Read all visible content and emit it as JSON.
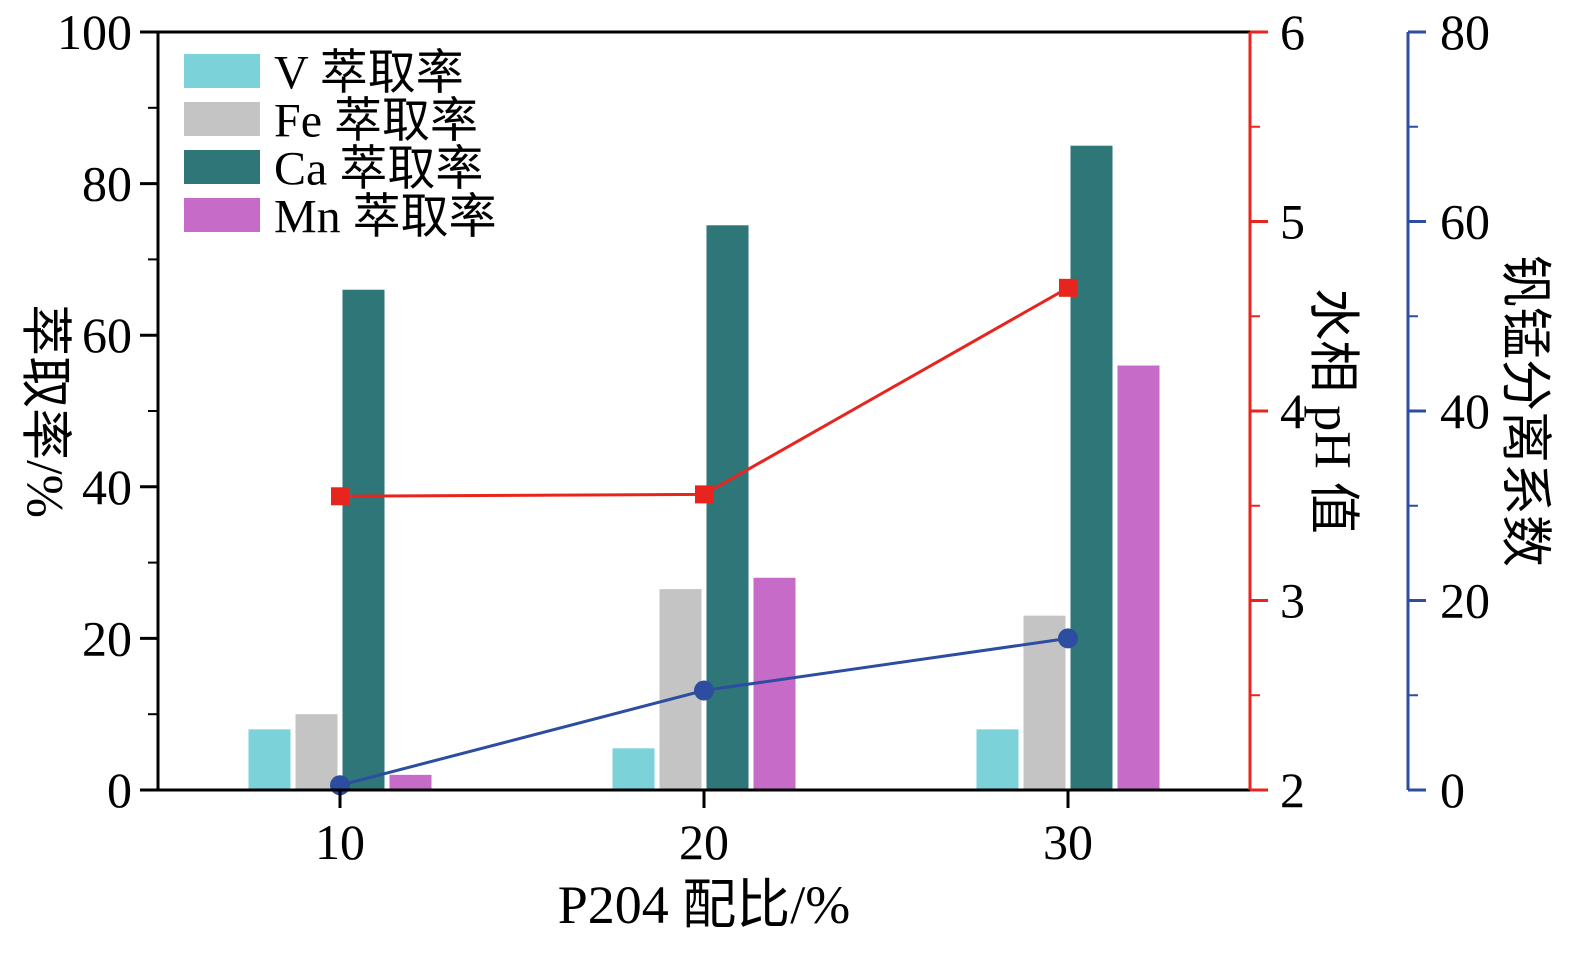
{
  "figure": {
    "description": "Combined bar and line chart: extraction rates of V, Fe, Ca, Mn; aqueous-phase pH; and V/Mn separation coefficient versus P204 ratio"
  },
  "chart_data": {
    "type": "bar+line",
    "categories": [
      "10",
      "20",
      "30"
    ],
    "bar_series": [
      {
        "name": "V 萃取率",
        "color": "#7bd2d8",
        "values": [
          8,
          5.5,
          8
        ]
      },
      {
        "name": "Fe 萃取率",
        "color": "#c4c4c4",
        "values": [
          10,
          26.5,
          23
        ]
      },
      {
        "name": "Ca 萃取率",
        "color": "#2e7677",
        "values": [
          66,
          74.5,
          85
        ]
      },
      {
        "name": "Mn 萃取率",
        "color": "#c66cc8",
        "values": [
          2,
          28,
          56
        ]
      }
    ],
    "line_series": [
      {
        "name": "水相 pH 值",
        "axis": "right1",
        "color": "#e8241e",
        "marker": "square",
        "values": [
          3.55,
          3.56,
          4.65
        ]
      },
      {
        "name": "钒锰分离系数",
        "axis": "right2",
        "color": "#2c4da0",
        "marker": "circle",
        "values": [
          0.5,
          10.5,
          16
        ]
      }
    ],
    "axes": {
      "left": {
        "label": "萃取率/%",
        "min": 0,
        "max": 100,
        "ticks": [
          0,
          20,
          40,
          60,
          80,
          100
        ],
        "minor_step": 10,
        "color": "#000000"
      },
      "right1": {
        "label": "水相 pH 值",
        "min": 2,
        "max": 6,
        "ticks": [
          2,
          3,
          4,
          5,
          6
        ],
        "minor_step": 0.5,
        "color": "#e8241e"
      },
      "right2": {
        "label": "钒锰分离系数",
        "min": 0,
        "max": 80,
        "ticks": [
          0,
          20,
          40,
          60,
          80
        ],
        "minor_step": 10,
        "color": "#2c4da0"
      },
      "x": {
        "label": "P204 配比/%",
        "tick_labels": [
          "10",
          "20",
          "30"
        ]
      }
    },
    "legend": {
      "position": "top-left-inside"
    },
    "grid": false
  }
}
